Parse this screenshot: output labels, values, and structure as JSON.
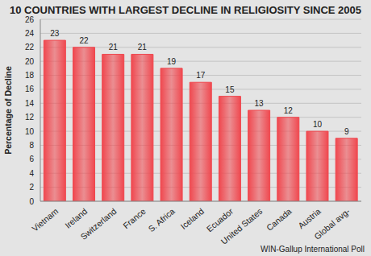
{
  "chart_data": {
    "type": "bar",
    "title": "10 COUNTRIES WITH LARGEST DECLINE IN RELIGIOSITY SINCE 2005",
    "ylabel": "Percentage of Decline",
    "source": "WIN-Gallup International Poll",
    "categories": [
      "Vietnam",
      "Ireland",
      "Switzerland",
      "France",
      "S. Africa",
      "Iceland",
      "Ecuador",
      "United States",
      "Canada",
      "Austria",
      "Global avg-"
    ],
    "values": [
      23,
      22,
      21,
      21,
      19,
      17,
      15,
      13,
      12,
      10,
      9
    ],
    "color": "#f0484f",
    "ylim": [
      0,
      26
    ],
    "yticks": [
      0,
      2,
      4,
      6,
      8,
      10,
      12,
      14,
      16,
      18,
      20,
      22,
      24,
      26
    ],
    "grid": true,
    "data_labels": true
  }
}
